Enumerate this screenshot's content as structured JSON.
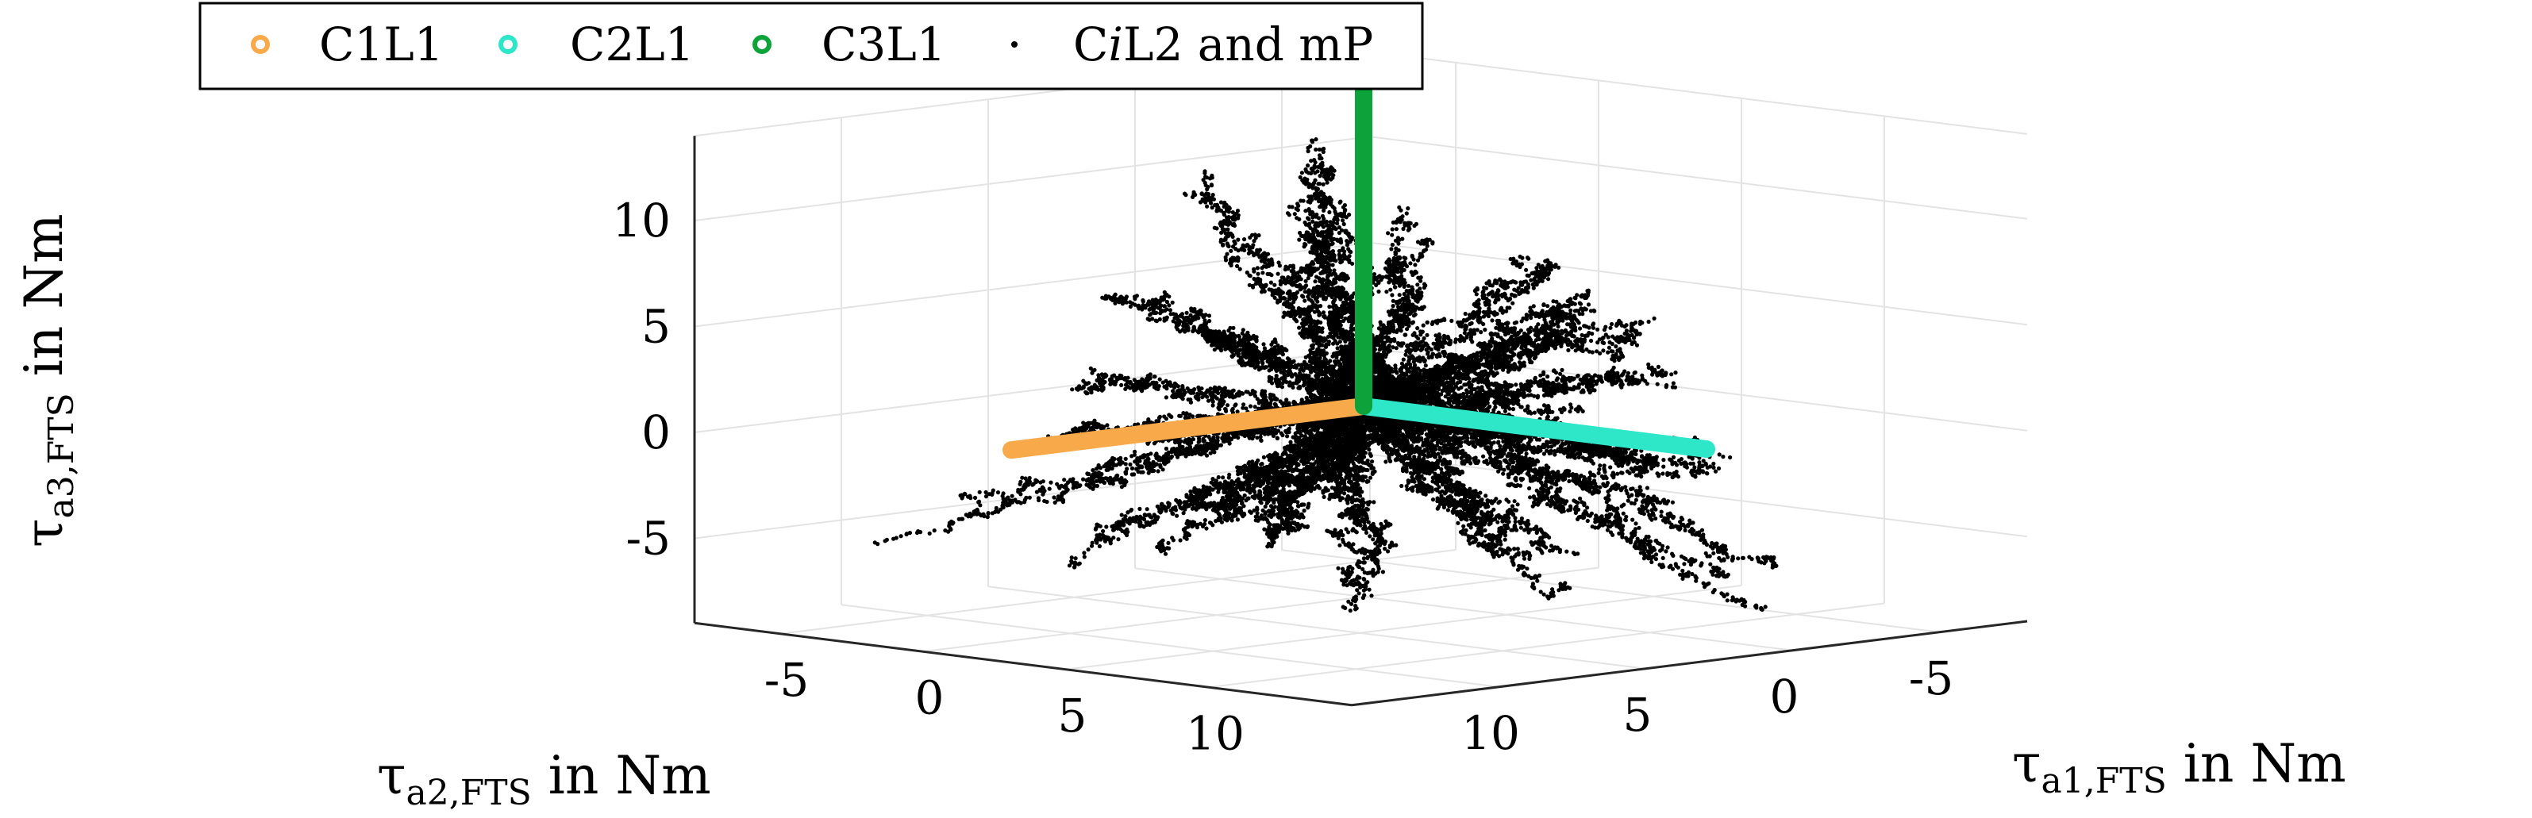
{
  "chart_data": {
    "type": "scatter",
    "projection": "3d",
    "xlabel": {
      "sym": "τ",
      "sub": "a1,FTS",
      "rest": " in Nm"
    },
    "ylabel": {
      "sym": "τ",
      "sub": "a2,FTS",
      "rest": " in Nm"
    },
    "zlabel": {
      "sym": "τ",
      "sub": "a3,FTS",
      "rest": " in Nm"
    },
    "xlim": [
      -8,
      15
    ],
    "ylim": [
      -8,
      15
    ],
    "zlim": [
      -9,
      14
    ],
    "xticks": [
      {
        "v": -5,
        "label": "-5"
      },
      {
        "v": 0,
        "label": "0"
      },
      {
        "v": 5,
        "label": "5"
      },
      {
        "v": 10,
        "label": "10"
      }
    ],
    "yticks": [
      {
        "v": -5,
        "label": "-5"
      },
      {
        "v": 0,
        "label": "0"
      },
      {
        "v": 5,
        "label": "5"
      },
      {
        "v": 10,
        "label": "10"
      }
    ],
    "zticks": [
      {
        "v": -5,
        "label": "-5"
      },
      {
        "v": 0,
        "label": "0"
      },
      {
        "v": 5,
        "label": "5"
      },
      {
        "v": 10,
        "label": "10"
      }
    ],
    "grid": true,
    "legend": {
      "placement": "top-left",
      "entries": [
        {
          "label": "C1L1",
          "color": "#f8a94a",
          "marker": "circle"
        },
        {
          "label": "C2L1",
          "color": "#2ee6c8",
          "marker": "circle"
        },
        {
          "label": "C3L1",
          "color": "#0ea33a",
          "marker": "circle"
        },
        {
          "label_parts": [
            "C",
            "i",
            "L2 and mP"
          ],
          "color": "#000000",
          "marker": "dot"
        }
      ]
    },
    "series": [
      {
        "name": "C1L1",
        "color": "#f8a94a",
        "points": [
          [
            0,
            0,
            0
          ],
          [
            0,
            12,
            0
          ]
        ]
      },
      {
        "name": "C2L1",
        "color": "#2ee6c8",
        "points": [
          [
            0,
            0,
            0
          ],
          [
            12,
            0,
            0
          ]
        ]
      },
      {
        "name": "C3L1",
        "color": "#0ea33a",
        "points": [
          [
            0,
            0,
            0
          ],
          [
            0,
            0,
            15
          ]
        ]
      },
      {
        "name": "CiL2 and mP",
        "color": "#000000",
        "trajectories": [
          {
            "dir": [
              -0.05,
              -0.9,
              0.3
            ],
            "len": 14
          },
          {
            "dir": [
              -0.2,
              -0.85,
              0.55
            ],
            "len": 13
          },
          {
            "dir": [
              0.0,
              -0.95,
              0.45
            ],
            "len": 12
          },
          {
            "dir": [
              0.2,
              -0.9,
              0.3
            ],
            "len": 11
          },
          {
            "dir": [
              0.3,
              -0.8,
              0.05
            ],
            "len": 10
          },
          {
            "dir": [
              -0.1,
              -0.9,
              -0.1
            ],
            "len": 13
          },
          {
            "dir": [
              0.35,
              -0.7,
              -0.35
            ],
            "len": 12
          },
          {
            "dir": [
              0.15,
              -0.95,
              -0.4
            ],
            "len": 14
          },
          {
            "dir": [
              -0.9,
              0.1,
              0.5
            ],
            "len": 12
          },
          {
            "dir": [
              -0.85,
              -0.2,
              0.25
            ],
            "len": 11
          },
          {
            "dir": [
              -0.95,
              0.2,
              0.05
            ],
            "len": 13
          },
          {
            "dir": [
              -0.9,
              0.3,
              -0.25
            ],
            "len": 12
          },
          {
            "dir": [
              -0.85,
              -0.1,
              -0.35
            ],
            "len": 10
          },
          {
            "dir": [
              -0.6,
              0.7,
              -0.45
            ],
            "len": 12
          },
          {
            "dir": [
              0.1,
              0.9,
              -0.6
            ],
            "len": 9
          },
          {
            "dir": [
              -0.3,
              0.8,
              -0.7
            ],
            "len": 10
          },
          {
            "dir": [
              0.05,
              0.2,
              0.95
            ],
            "len": 13
          },
          {
            "dir": [
              -0.5,
              -0.4,
              0.75
            ],
            "len": 12
          },
          {
            "dir": [
              0.3,
              0.1,
              0.9
            ],
            "len": 10
          },
          {
            "dir": [
              -0.35,
              0.1,
              0.8
            ],
            "len": 11
          },
          {
            "dir": [
              0.9,
              -0.1,
              -0.35
            ],
            "len": 14
          },
          {
            "dir": [
              0.85,
              0.3,
              -0.45
            ],
            "len": 13
          },
          {
            "dir": [
              0.95,
              0.0,
              -0.05
            ],
            "len": 12
          },
          {
            "dir": [
              0.8,
              0.4,
              0.15
            ],
            "len": 11
          },
          {
            "dir": [
              0.6,
              0.6,
              -0.55
            ],
            "len": 12
          },
          {
            "dir": [
              0.7,
              -0.3,
              -0.6
            ],
            "len": 13
          },
          {
            "dir": [
              0.5,
              0.5,
              0.4
            ],
            "len": 9
          },
          {
            "dir": [
              -0.2,
              0.3,
              -0.9
            ],
            "len": 7
          },
          {
            "dir": [
              0.25,
              -0.3,
              -0.85
            ],
            "len": 8
          },
          {
            "dir": [
              -0.55,
              -0.3,
              -0.6
            ],
            "len": 11
          }
        ]
      }
    ]
  }
}
